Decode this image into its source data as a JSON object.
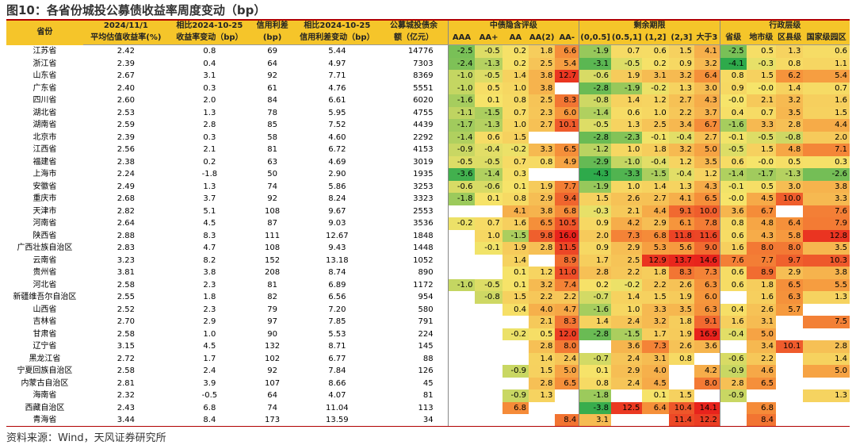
{
  "title": "图10：各省份城投公募债收益率周度变动（bp）",
  "source": "资料来源：Wind，天风证券研究所",
  "header": {
    "row1": [
      "省份",
      "2024/11/1",
      "相比2024-10-25",
      "信用利差",
      "相比2024-10-25",
      "公募城投债余",
      "中债隐含评级",
      "剩余期限",
      "行政层级"
    ],
    "row2": [
      "平均估值收益率(%)",
      "收益率变动（bp）",
      "(bp)",
      "信用利差变动（bp）",
      "额（亿元）",
      "AAA",
      "AA+",
      "AA",
      "AA(2)",
      "AA-",
      "(0,0.5]",
      "(0.5,1]",
      "(1,2]",
      "(2,3]",
      "大于3",
      "省级",
      "地市级",
      "区县级",
      "国家级园区"
    ]
  },
  "rows": [
    {
      "p": "江苏省",
      "v": [
        "2.42",
        "0.8",
        "69",
        "5.44",
        "14776",
        "-2.5",
        "-0.5",
        "0.2",
        "1.8",
        "6.6",
        "-1.9",
        "0.7",
        "0.6",
        "1.5",
        "4.1",
        "-2.5",
        "0.5",
        "1.3",
        "0.6"
      ]
    },
    {
      "p": "浙江省",
      "v": [
        "2.39",
        "0.4",
        "64",
        "4.97",
        "7303",
        "-2.4",
        "-1.3",
        "0.2",
        "2.5",
        "5.4",
        "-3.1",
        "-0.5",
        "0.2",
        "0.9",
        "3.2",
        "-4.1",
        "-0.3",
        "0.8",
        "1.1"
      ]
    },
    {
      "p": "山东省",
      "v": [
        "2.67",
        "3.1",
        "92",
        "7.71",
        "8369",
        "-1.0",
        "-0.5",
        "1.4",
        "3.8",
        "12.7",
        "-0.6",
        "1.9",
        "3.1",
        "3.2",
        "6.4",
        "0.8",
        "1.5",
        "6.2",
        "5.4"
      ]
    },
    {
      "p": "广东省",
      "v": [
        "2.40",
        "0.3",
        "61",
        "4.76",
        "5551",
        "-1.0",
        "0.5",
        "1.0",
        "3.8",
        "",
        "-2.8",
        "-1.9",
        "-0.2",
        "1.3",
        "3.0",
        "0.9",
        "-0.0",
        "1.4",
        "0.7"
      ]
    },
    {
      "p": "四川省",
      "v": [
        "2.60",
        "2.0",
        "84",
        "6.61",
        "6020",
        "-1.6",
        "0.1",
        "0.8",
        "2.5",
        "8.3",
        "-0.8",
        "1.4",
        "1.2",
        "2.7",
        "4.3",
        "-0.0",
        "2.1",
        "3.2",
        "1.6"
      ]
    },
    {
      "p": "湖北省",
      "v": [
        "2.53",
        "1.3",
        "78",
        "5.95",
        "4755",
        "-1.1",
        "-1.5",
        "0.7",
        "2.3",
        "6.0",
        "-1.4",
        "0.6",
        "1.0",
        "2.2",
        "3.7",
        "0.4",
        "0.7",
        "3.5",
        "1.5"
      ]
    },
    {
      "p": "湖南省",
      "v": [
        "2.59",
        "2.8",
        "85",
        "7.52",
        "4439",
        "-1.7",
        "-1.3",
        "1.0",
        "2.7",
        "10.1",
        "-0.5",
        "1.3",
        "2.5",
        "3.4",
        "6.7",
        "-1.6",
        "3.3",
        "2.8",
        "4.4"
      ]
    },
    {
      "p": "北京市",
      "v": [
        "2.39",
        "0.3",
        "58",
        "4.60",
        "2292",
        "-1.4",
        "0.6",
        "1.5",
        "",
        "",
        "-2.8",
        "-2.3",
        "-0.1",
        "-0.4",
        "2.7",
        "-0.1",
        "-0.5",
        "-0.8",
        "2.0"
      ]
    },
    {
      "p": "江西省",
      "v": [
        "2.56",
        "2.1",
        "81",
        "6.72",
        "4153",
        "-0.9",
        "-0.4",
        "-0.2",
        "3.3",
        "6.5",
        "-1.2",
        "1.0",
        "1.8",
        "3.2",
        "5.0",
        "-0.5",
        "1.5",
        "4.8",
        "7.1"
      ]
    },
    {
      "p": "福建省",
      "v": [
        "2.38",
        "0.2",
        "63",
        "4.69",
        "3019",
        "-0.5",
        "-0.5",
        "0.7",
        "0.8",
        "4.9",
        "-2.9",
        "-1.0",
        "-0.4",
        "1.2",
        "3.5",
        "0.6",
        "-0.0",
        "0.5",
        "0.3"
      ]
    },
    {
      "p": "上海市",
      "v": [
        "2.24",
        "-1.8",
        "50",
        "2.90",
        "1935",
        "-3.6",
        "-1.4",
        "0.3",
        "",
        "",
        "-4.3",
        "-3.3",
        "-1.5",
        "-0.4",
        "1.2",
        "-1.4",
        "-1.7",
        "-1.3",
        "-2.6"
      ]
    },
    {
      "p": "安徽省",
      "v": [
        "2.49",
        "1.3",
        "74",
        "5.86",
        "3253",
        "-0.6",
        "-0.6",
        "0.1",
        "1.9",
        "7.7",
        "-1.9",
        "1.0",
        "1.4",
        "1.3",
        "4.3",
        "-0.1",
        "0.5",
        "3.0",
        "3.8"
      ]
    },
    {
      "p": "重庆市",
      "v": [
        "2.68",
        "3.7",
        "92",
        "8.24",
        "3323",
        "-1.8",
        "0.1",
        "0.8",
        "2.9",
        "9.4",
        "1.5",
        "2.6",
        "2.7",
        "4.1",
        "6.5",
        "-0.0",
        "4.5",
        "10.0",
        "3.3"
      ]
    },
    {
      "p": "天津市",
      "v": [
        "2.82",
        "5.1",
        "108",
        "9.67",
        "2553",
        "",
        "",
        "4.1",
        "3.8",
        "6.8",
        "-0.3",
        "2.1",
        "4.4",
        "9.1",
        "10.0",
        "3.6",
        "6.7",
        "",
        "7.6"
      ]
    },
    {
      "p": "河南省",
      "v": [
        "2.64",
        "4.5",
        "87",
        "9.03",
        "3536",
        "-0.2",
        "0.7",
        "1.6",
        "6.5",
        "10.5",
        "0.9",
        "4.2",
        "2.9",
        "6.1",
        "7.8",
        "0.8",
        "4.8",
        "6.4",
        "7.9"
      ]
    },
    {
      "p": "陕西省",
      "v": [
        "2.88",
        "8.3",
        "111",
        "12.67",
        "1848",
        "",
        "1.0",
        "-1.5",
        "9.8",
        "16.0",
        "2.0",
        "7.3",
        "6.8",
        "11.8",
        "11.6",
        "0.6",
        "4.3",
        "5.8",
        "12.8"
      ]
    },
    {
      "p": "广西壮族自治区",
      "v": [
        "2.83",
        "4.7",
        "108",
        "9.43",
        "1448",
        "",
        "-0.1",
        "1.9",
        "2.8",
        "11.5",
        "0.9",
        "2.9",
        "5.3",
        "5.6",
        "9.0",
        "1.6",
        "8.0",
        "8.0",
        "3.5"
      ]
    },
    {
      "p": "云南省",
      "v": [
        "3.23",
        "8.2",
        "152",
        "13.18",
        "1052",
        "",
        "",
        "1.4",
        "",
        "8.9",
        "1.7",
        "2.5",
        "12.9",
        "13.7",
        "14.6",
        "7.6",
        "7.7",
        "9.7",
        "10.3"
      ]
    },
    {
      "p": "贵州省",
      "v": [
        "3.81",
        "3.8",
        "208",
        "8.74",
        "890",
        "",
        "",
        "0.1",
        "1.2",
        "11.0",
        "2.8",
        "2.2",
        "1.8",
        "8.3",
        "7.3",
        "0.6",
        "8.9",
        "2.9",
        "3.8"
      ]
    },
    {
      "p": "河北省",
      "v": [
        "2.58",
        "2.3",
        "81",
        "6.89",
        "1172",
        "-1.0",
        "-0.5",
        "0.1",
        "3.2",
        "7.4",
        "0.2",
        "-0.2",
        "2.2",
        "2.6",
        "6.3",
        "0.6",
        "1.8",
        "6.5",
        "5.5"
      ]
    },
    {
      "p": "新疆维吾尔自治区",
      "v": [
        "2.55",
        "1.8",
        "82",
        "6.56",
        "954",
        "",
        "-0.8",
        "1.5",
        "2.2",
        "2.2",
        "-0.7",
        "1.4",
        "1.5",
        "1.9",
        "6.0",
        "",
        "1.6",
        "6.3",
        "1.3"
      ]
    },
    {
      "p": "山西省",
      "v": [
        "2.52",
        "2.3",
        "79",
        "7.20",
        "580",
        "",
        "",
        "0.4",
        "4.0",
        "4.7",
        "-1.6",
        "1.0",
        "3.3",
        "3.5",
        "6.3",
        "0.4",
        "2.6",
        "5.7",
        ""
      ]
    },
    {
      "p": "吉林省",
      "v": [
        "2.70",
        "2.9",
        "97",
        "7.85",
        "791",
        "",
        "",
        "",
        "2.1",
        "8.3",
        "1.4",
        "2.4",
        "3.2",
        "1.8",
        "9.1",
        "1.6",
        "3.1",
        "",
        "7.5"
      ]
    },
    {
      "p": "甘肃省",
      "v": [
        "2.58",
        "1.0",
        "90",
        "5.53",
        "224",
        "",
        "",
        "-0.2",
        "0.5",
        "12.0",
        "-2.8",
        "-1.5",
        "1.7",
        "1.9",
        "16.9",
        "-0.4",
        "5.0",
        "",
        ""
      ]
    },
    {
      "p": "辽宁省",
      "v": [
        "3.15",
        "4.5",
        "132",
        "8.71",
        "145",
        "",
        "",
        "",
        "2.8",
        "8.0",
        "",
        "3.6",
        "7.3",
        "2.6",
        "3.6",
        "",
        "3.4",
        "10.1",
        "2.8"
      ]
    },
    {
      "p": "黑龙江省",
      "v": [
        "2.72",
        "1.7",
        "102",
        "6.77",
        "88",
        "",
        "",
        "",
        "1.4",
        "2.4",
        "-0.7",
        "2.4",
        "3.1",
        "0.8",
        "",
        "-0.6",
        "2.2",
        "",
        "1.4"
      ]
    },
    {
      "p": "宁夏回族自治区",
      "v": [
        "2.58",
        "2.4",
        "92",
        "7.84",
        "126",
        "",
        "",
        "-0.9",
        "1.5",
        "5.0",
        "0.1",
        "2.9",
        "4.0",
        "",
        "4.2",
        "-0.9",
        "4.6",
        "",
        "5.0"
      ]
    },
    {
      "p": "内蒙古自治区",
      "v": [
        "2.81",
        "3.9",
        "107",
        "8.66",
        "45",
        "",
        "",
        "",
        "2.8",
        "6.5",
        "0.8",
        "2.4",
        "4.5",
        "",
        "8.0",
        "2.8",
        "6.5",
        "",
        ""
      ]
    },
    {
      "p": "海南省",
      "v": [
        "2.32",
        "-0.5",
        "64",
        "4.07",
        "81",
        "",
        "",
        "-0.9",
        "1.3",
        "",
        "-1.8",
        "",
        "0.1",
        "1.5",
        "",
        "-0.9",
        "",
        "",
        "1.3"
      ]
    },
    {
      "p": "西藏自治区",
      "v": [
        "2.43",
        "6.8",
        "74",
        "11.04",
        "113",
        "",
        "",
        "6.8",
        "",
        "",
        "-3.8",
        "12.5",
        "6.4",
        "10.4",
        "14.1",
        "",
        "6.8",
        "",
        ""
      ]
    },
    {
      "p": "青海省",
      "v": [
        "3.44",
        "8.4",
        "173",
        "13.59",
        "34",
        "",
        "",
        "",
        "",
        "8.4",
        "3.1",
        "",
        "",
        "11.4",
        "12.2",
        "",
        "8.4",
        "",
        ""
      ]
    }
  ],
  "colors": {
    "header": "#f5c52a",
    "rule": "#b00000",
    "low": "#2eaa4b",
    "mid": "#f6e46a",
    "high": "#e8231c"
  }
}
